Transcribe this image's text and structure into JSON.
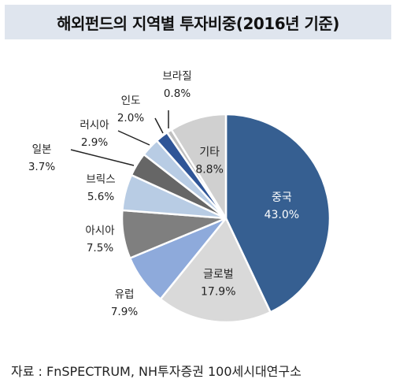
{
  "title": "해외펀드의 지역별 투자비중(2016년 기준)",
  "source": "자료 : FnSPECTRUM, NH투자증권 100세시대연구소",
  "chart_data": {
    "type": "pie",
    "title": "해외펀드의 지역별 투자비중(2016년 기준)",
    "unit": "%",
    "slices": [
      {
        "label": "중국",
        "value": 43.0,
        "value_label": "43.0%",
        "color": "#365f91"
      },
      {
        "label": "글로벌",
        "value": 17.9,
        "value_label": "17.9%",
        "color": "#d9d9d9"
      },
      {
        "label": "유럽",
        "value": 7.9,
        "value_label": "7.9%",
        "color": "#8eaadb"
      },
      {
        "label": "아시아",
        "value": 7.5,
        "value_label": "7.5%",
        "color": "#7f7f7f"
      },
      {
        "label": "브릭스",
        "value": 5.6,
        "value_label": "5.6%",
        "color": "#b8cce4"
      },
      {
        "label": "일본",
        "value": 3.7,
        "value_label": "3.7%",
        "color": "#666666"
      },
      {
        "label": "러시아",
        "value": 2.9,
        "value_label": "2.9%",
        "color": "#b8cce4"
      },
      {
        "label": "인도",
        "value": 2.0,
        "value_label": "2.0%",
        "color": "#2f5597"
      },
      {
        "label": "브라질",
        "value": 0.8,
        "value_label": "0.8%",
        "color": "#bfbfbf"
      },
      {
        "label": "기타",
        "value": 8.8,
        "value_label": "8.8%",
        "color": "#d0d0d0"
      }
    ]
  }
}
